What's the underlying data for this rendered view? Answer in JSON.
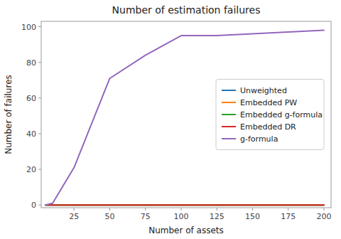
{
  "chart_data": {
    "type": "line",
    "title": "Number of estimation failures",
    "xlabel": "Number of assets",
    "ylabel": "Number of failures",
    "x": [
      5,
      10,
      25,
      50,
      75,
      100,
      125,
      150,
      175,
      200
    ],
    "series": [
      {
        "name": "Unweighted",
        "color": "#1f77b4",
        "values": [
          0,
          0,
          0,
          0,
          0,
          0,
          0,
          0,
          0,
          0
        ]
      },
      {
        "name": "Embedded PW",
        "color": "#ff7f0e",
        "values": [
          0,
          0,
          0,
          0,
          0,
          0,
          0,
          0,
          0,
          0
        ]
      },
      {
        "name": "Embedded g-formula",
        "color": "#2ca02c",
        "values": [
          0,
          0,
          0,
          0,
          0,
          0,
          0,
          0,
          0,
          0
        ]
      },
      {
        "name": "Embedded DR",
        "color": "#d62728",
        "values": [
          0,
          0,
          0,
          0,
          0,
          0,
          0,
          0,
          0,
          0
        ]
      },
      {
        "name": "g-formula",
        "color": "#9467bd",
        "values": [
          0,
          1,
          21,
          71,
          84,
          95,
          95,
          96,
          97,
          98
        ]
      }
    ],
    "xlim": [
      2,
      205
    ],
    "ylim": [
      -1.5,
      103
    ],
    "xticks": [
      25,
      50,
      75,
      100,
      125,
      150,
      175,
      200
    ],
    "yticks": [
      0,
      20,
      40,
      60,
      80,
      100
    ],
    "legend": "center right",
    "grid": false
  }
}
